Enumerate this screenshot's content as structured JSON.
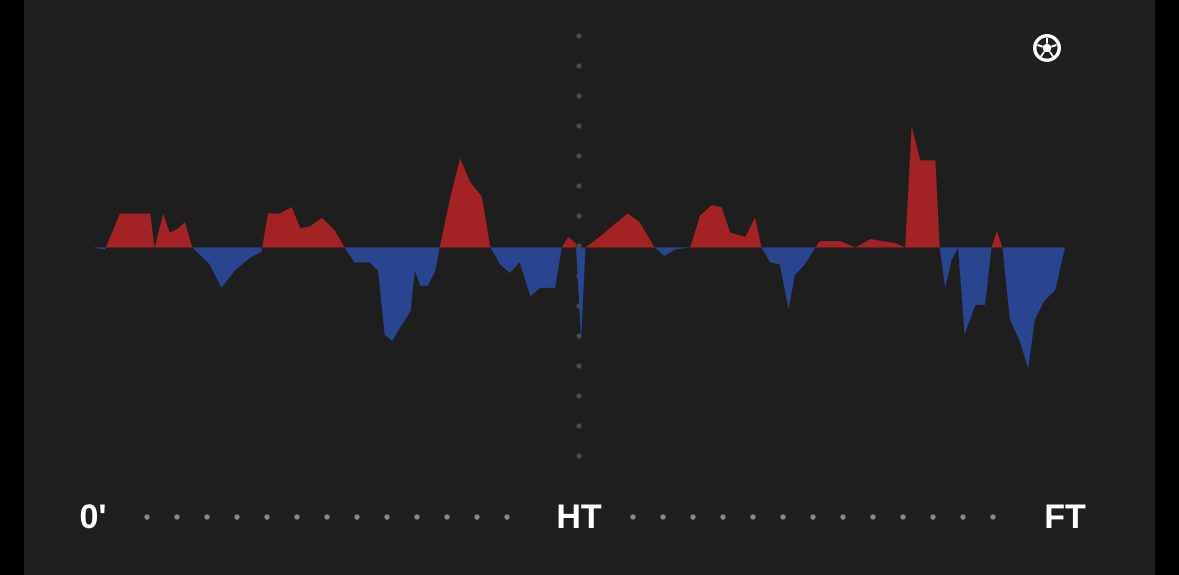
{
  "chart_data": {
    "type": "area",
    "x": [
      0,
      1.1,
      2.5,
      5.3,
      5.7,
      6.5,
      7.1,
      7.9,
      8.5,
      9.2,
      10.8,
      11.9,
      13.1,
      14.5,
      15.6,
      16.2,
      17.3,
      18.4,
      19.2,
      20.1,
      21.2,
      22.4,
      23.3,
      24.2,
      25.6,
      26.4,
      27.0,
      27.7,
      28.4,
      29.4,
      29.8,
      30.3,
      31.0,
      31.7,
      32.1,
      33.1,
      34.0,
      34.9,
      36.0,
      36.8,
      37.7,
      38.6,
      39.5,
      40.5,
      41.4,
      42.8,
      43.4,
      44.0,
      44.7,
      45.2,
      45.6,
      46.9,
      48.3,
      49.5,
      50.6,
      52.0,
      52.9,
      53.9,
      55.3,
      56.2,
      57.3,
      58.2,
      59.0,
      60.4,
      61.3,
      61.9,
      62.7,
      63.6,
      64.4,
      65.0,
      65.9,
      66.9,
      67.3,
      69.2,
      70.6,
      72.0,
      74.3,
      75.2,
      75.8,
      76.6,
      78.0,
      78.4,
      78.9,
      79.5,
      80.1,
      80.7,
      81.7,
      82.6,
      83.2,
      83.7,
      84.2,
      84.9,
      85.8,
      86.6,
      87.2,
      88.1,
      89.1,
      90
    ],
    "values": [
      0,
      -1,
      16,
      16,
      0,
      16,
      7,
      9,
      12,
      0,
      -8,
      -19,
      -11,
      -5,
      -2,
      16,
      16,
      19,
      9,
      10,
      14,
      8,
      0,
      -7,
      -7,
      -11,
      -41,
      -44,
      -38,
      -30,
      -11,
      -18,
      -18,
      -11,
      0,
      24,
      42,
      31,
      24,
      0,
      -8,
      -12,
      -7,
      -23,
      -19,
      -19,
      0,
      5,
      2,
      -44,
      0,
      5,
      11,
      16,
      12,
      0,
      -4,
      -1,
      0,
      15,
      20,
      19,
      7,
      5,
      14,
      0,
      -7,
      -8,
      -29,
      -13,
      -8,
      0,
      3,
      3,
      0,
      4,
      2,
      0,
      57,
      41,
      41,
      0,
      -19,
      -6,
      0,
      -41,
      -27,
      -27,
      0,
      8,
      0,
      -34,
      -44,
      -57,
      -34,
      -25,
      -20,
      0
    ],
    "xlim": [
      0,
      90
    ],
    "ylim": [
      -100,
      100
    ],
    "xticks": [
      {
        "value": 0,
        "label": "0'"
      },
      {
        "value": 45,
        "label": "HT"
      },
      {
        "value": 90,
        "label": "FT"
      }
    ],
    "color_positive": "#a32324",
    "color_negative": "#2a4590"
  }
}
